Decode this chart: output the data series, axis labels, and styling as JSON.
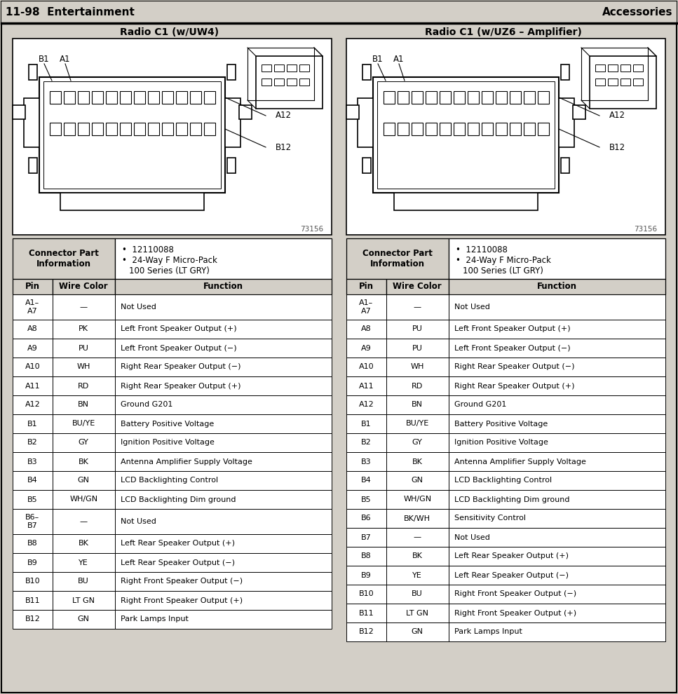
{
  "title_left": "11-98  Entertainment",
  "title_right": "Accessories",
  "subtitle_left": "Radio C1 (w/UW4)",
  "subtitle_right": "Radio C1 (w/UZ6 – Amplifier)",
  "connector_part_label": "Connector Part\nInformation",
  "connector_info_bullets_1": "12110088",
  "connector_info_bullets_2": "24-Way F Micro-Pack\n100 Series (LT GRY)",
  "diagram_number": "73156",
  "col_headers": [
    "Pin",
    "Wire Color",
    "Function"
  ],
  "table1_rows": [
    [
      "A1–\nA7",
      "—",
      "Not Used"
    ],
    [
      "A8",
      "PK",
      "Left Front Speaker Output (+)"
    ],
    [
      "A9",
      "PU",
      "Left Front Speaker Output (−)"
    ],
    [
      "A10",
      "WH",
      "Right Rear Speaker Output (−)"
    ],
    [
      "A11",
      "RD",
      "Right Rear Speaker Output (+)"
    ],
    [
      "A12",
      "BN",
      "Ground G201"
    ],
    [
      "B1",
      "BU/YE",
      "Battery Positive Voltage"
    ],
    [
      "B2",
      "GY",
      "Ignition Positive Voltage"
    ],
    [
      "B3",
      "BK",
      "Antenna Amplifier Supply Voltage"
    ],
    [
      "B4",
      "GN",
      "LCD Backlighting Control"
    ],
    [
      "B5",
      "WH/GN",
      "LCD Backlighting Dim ground"
    ],
    [
      "B6–\nB7",
      "—",
      "Not Used"
    ],
    [
      "B8",
      "BK",
      "Left Rear Speaker Output (+)"
    ],
    [
      "B9",
      "YE",
      "Left Rear Speaker Output (−)"
    ],
    [
      "B10",
      "BU",
      "Right Front Speaker Output (−)"
    ],
    [
      "B11",
      "LT GN",
      "Right Front Speaker Output (+)"
    ],
    [
      "B12",
      "GN",
      "Park Lamps Input"
    ]
  ],
  "table2_rows": [
    [
      "A1–\nA7",
      "—",
      "Not Used"
    ],
    [
      "A8",
      "PU",
      "Left Front Speaker Output (+)"
    ],
    [
      "A9",
      "PU",
      "Left Front Speaker Output (−)"
    ],
    [
      "A10",
      "WH",
      "Right Rear Speaker Output (−)"
    ],
    [
      "A11",
      "RD",
      "Right Rear Speaker Output (+)"
    ],
    [
      "A12",
      "BN",
      "Ground G201"
    ],
    [
      "B1",
      "BU/YE",
      "Battery Positive Voltage"
    ],
    [
      "B2",
      "GY",
      "Ignition Positive Voltage"
    ],
    [
      "B3",
      "BK",
      "Antenna Amplifier Supply Voltage"
    ],
    [
      "B4",
      "GN",
      "LCD Backlighting Control"
    ],
    [
      "B5",
      "WH/GN",
      "LCD Backlighting Dim ground"
    ],
    [
      "B6",
      "BK/WH",
      "Sensitivity Control"
    ],
    [
      "B7",
      "—",
      "Not Used"
    ],
    [
      "B8",
      "BK",
      "Left Rear Speaker Output (+)"
    ],
    [
      "B9",
      "YE",
      "Left Rear Speaker Output (−)"
    ],
    [
      "B10",
      "BU",
      "Right Front Speaker Output (−)"
    ],
    [
      "B11",
      "LT GN",
      "Right Front Speaker Output (+)"
    ],
    [
      "B12",
      "GN",
      "Park Lamps Input"
    ]
  ],
  "bg_color": "#d3cfc7",
  "table_bg": "#ffffff",
  "header_bg": "#d3cfc7",
  "border_color": "#000000"
}
